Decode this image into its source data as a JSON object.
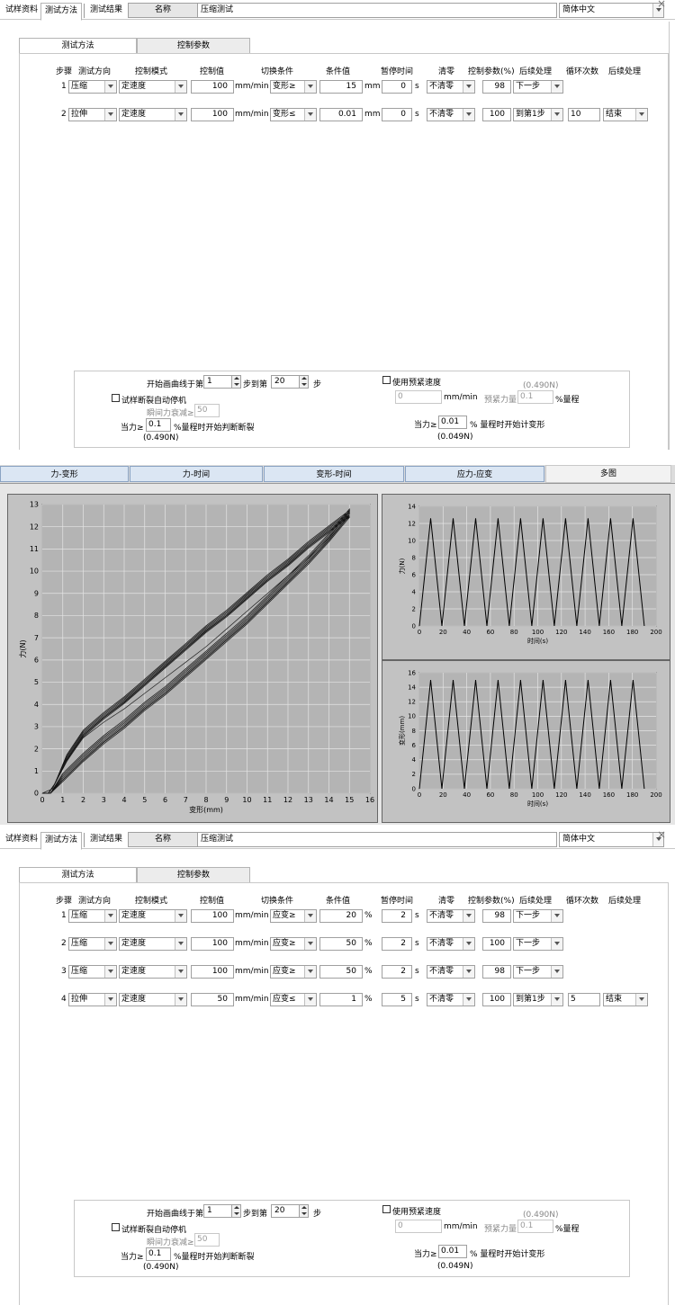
{
  "top_tabs": [
    "试样资料",
    "测试方法",
    "测试结果"
  ],
  "name_label": "名称",
  "name_value": "压缩测试",
  "language": "简体中文",
  "sub_tabs": [
    "测试方法",
    "控制参数"
  ],
  "columns": [
    "步骤",
    "测试方向",
    "控制模式",
    "控制值",
    "切换条件",
    "条件值",
    "暂停时间",
    "清零",
    "控制参数(%)",
    "后续处理",
    "循环次数",
    "后续处理"
  ],
  "speed_unit": "mm/min",
  "pause_unit": "s",
  "method1": {
    "rows": [
      {
        "step": "1",
        "direction": "压缩",
        "mode": "定速度",
        "value": "100",
        "cond": "变形≥",
        "cond_value": "15",
        "cond_unit": "mm",
        "pause": "0",
        "zero": "不清零",
        "param": "98",
        "next": "下一步",
        "cycles": "",
        "final": ""
      },
      {
        "step": "2",
        "direction": "拉伸",
        "mode": "定速度",
        "value": "100",
        "cond": "变形≤",
        "cond_value": "0.01",
        "cond_unit": "mm",
        "pause": "0",
        "zero": "不清零",
        "param": "100",
        "next": "到第1步",
        "cycles": "10",
        "final": "结束"
      }
    ]
  },
  "method2": {
    "rows": [
      {
        "step": "1",
        "direction": "压缩",
        "mode": "定速度",
        "value": "100",
        "cond": "应变≥",
        "cond_value": "20",
        "cond_unit": "%",
        "pause": "2",
        "zero": "不清零",
        "param": "98",
        "next": "下一步",
        "cycles": "",
        "final": ""
      },
      {
        "step": "2",
        "direction": "压缩",
        "mode": "定速度",
        "value": "100",
        "cond": "应变≥",
        "cond_value": "50",
        "cond_unit": "%",
        "pause": "2",
        "zero": "不清零",
        "param": "100",
        "next": "下一步",
        "cycles": "",
        "final": ""
      },
      {
        "step": "3",
        "direction": "压缩",
        "mode": "定速度",
        "value": "100",
        "cond": "应变≥",
        "cond_value": "50",
        "cond_unit": "%",
        "pause": "2",
        "zero": "不清零",
        "param": "98",
        "next": "下一步",
        "cycles": "",
        "final": ""
      },
      {
        "step": "4",
        "direction": "拉伸",
        "mode": "定速度",
        "value": "50",
        "cond": "应变≤",
        "cond_value": "1",
        "cond_unit": "%",
        "pause": "5",
        "zero": "不清零",
        "param": "100",
        "next": "到第1步",
        "cycles": "5",
        "final": "结束"
      }
    ]
  },
  "bottom": {
    "draw_from_label": "开始画曲线于第",
    "draw_from": "1",
    "draw_to_label": "步到第",
    "draw_to": "20",
    "draw_unit": "步",
    "preload_label": "使用预紧速度",
    "preload_force": "(0.490N)",
    "preload_speed": "0",
    "preload_speed_unit": "mm/min",
    "preload_amount_label": "预紧力量",
    "preload_amount": "0.1",
    "preload_amount_unit": "%量程",
    "auto_stop_label": "试样断裂自动停机",
    "instant_drop_label": "瞬间力衰减≥",
    "instant_drop": "50",
    "when_force_label": "当力≥",
    "when_force": "0.1",
    "when_force_suffix": "%量程时开始判断断裂",
    "when_force_n": "(0.490N)",
    "deform_label": "当力≥",
    "deform_value": "0.01",
    "deform_suffix": "% 量程时开始计变形",
    "deform_n": "(0.049N)"
  },
  "graph_tabs": [
    "力-变形",
    "力-时间",
    "变形-时间",
    "应力-应变",
    "多图"
  ],
  "chart_data": [
    {
      "type": "line",
      "xlabel": "变形(mm)",
      "ylabel": "力(N)",
      "xlim": [
        0,
        16
      ],
      "ylim": [
        0,
        13
      ],
      "xticks": [
        0,
        1,
        2,
        3,
        4,
        5,
        6,
        7,
        8,
        9,
        10,
        11,
        12,
        13,
        14,
        15,
        16
      ],
      "yticks": [
        0,
        1,
        2,
        3,
        4,
        5,
        6,
        7,
        8,
        9,
        10,
        11,
        12,
        13
      ],
      "grid": true,
      "series": [
        {
          "x": [
            0,
            0.4,
            1,
            2,
            3,
            4,
            5,
            6,
            7,
            8,
            9,
            10,
            11,
            12,
            13,
            14,
            15
          ],
          "y": [
            0,
            0,
            0.6,
            1.5,
            2.3,
            3.0,
            3.8,
            4.5,
            5.3,
            6.1,
            6.9,
            7.7,
            8.6,
            9.5,
            10.4,
            11.4,
            12.5
          ]
        },
        {
          "x": [
            15,
            14,
            13,
            12,
            11,
            10,
            9,
            8,
            7,
            6,
            5,
            4,
            3,
            2,
            1.2,
            0.6,
            0.3,
            0
          ],
          "y": [
            12.5,
            11.8,
            11.1,
            10.3,
            9.6,
            8.8,
            8.0,
            7.3,
            6.5,
            5.7,
            4.9,
            4.1,
            3.4,
            2.6,
            1.5,
            0.4,
            0,
            0
          ]
        }
      ]
    },
    {
      "type": "line",
      "xlabel": "时间(s)",
      "ylabel": "力(N)",
      "xlim": [
        0,
        200
      ],
      "ylim": [
        0,
        14
      ],
      "xticks": [
        0,
        20,
        40,
        60,
        80,
        100,
        120,
        140,
        160,
        180,
        200
      ],
      "yticks": [
        0,
        2,
        4,
        6,
        8,
        10,
        12,
        14
      ],
      "grid": true,
      "peak": 12.6,
      "peaks_x": [
        9.5,
        28.5,
        47.5,
        66.5,
        85.5,
        104.5,
        123.5,
        142.5,
        161.5,
        180.5
      ],
      "end_x": 190
    },
    {
      "type": "line",
      "xlabel": "时间(s)",
      "ylabel": "变形(mm)",
      "xlim": [
        0,
        200
      ],
      "ylim": [
        0,
        16
      ],
      "xticks": [
        0,
        20,
        40,
        60,
        80,
        100,
        120,
        140,
        160,
        180,
        200
      ],
      "yticks": [
        0,
        2,
        4,
        6,
        8,
        10,
        12,
        14,
        16
      ],
      "grid": true,
      "peak": 15,
      "peaks_x": [
        9.5,
        28.5,
        47.5,
        66.5,
        85.5,
        104.5,
        123.5,
        142.5,
        161.5,
        180.5
      ],
      "end_x": 190
    }
  ]
}
